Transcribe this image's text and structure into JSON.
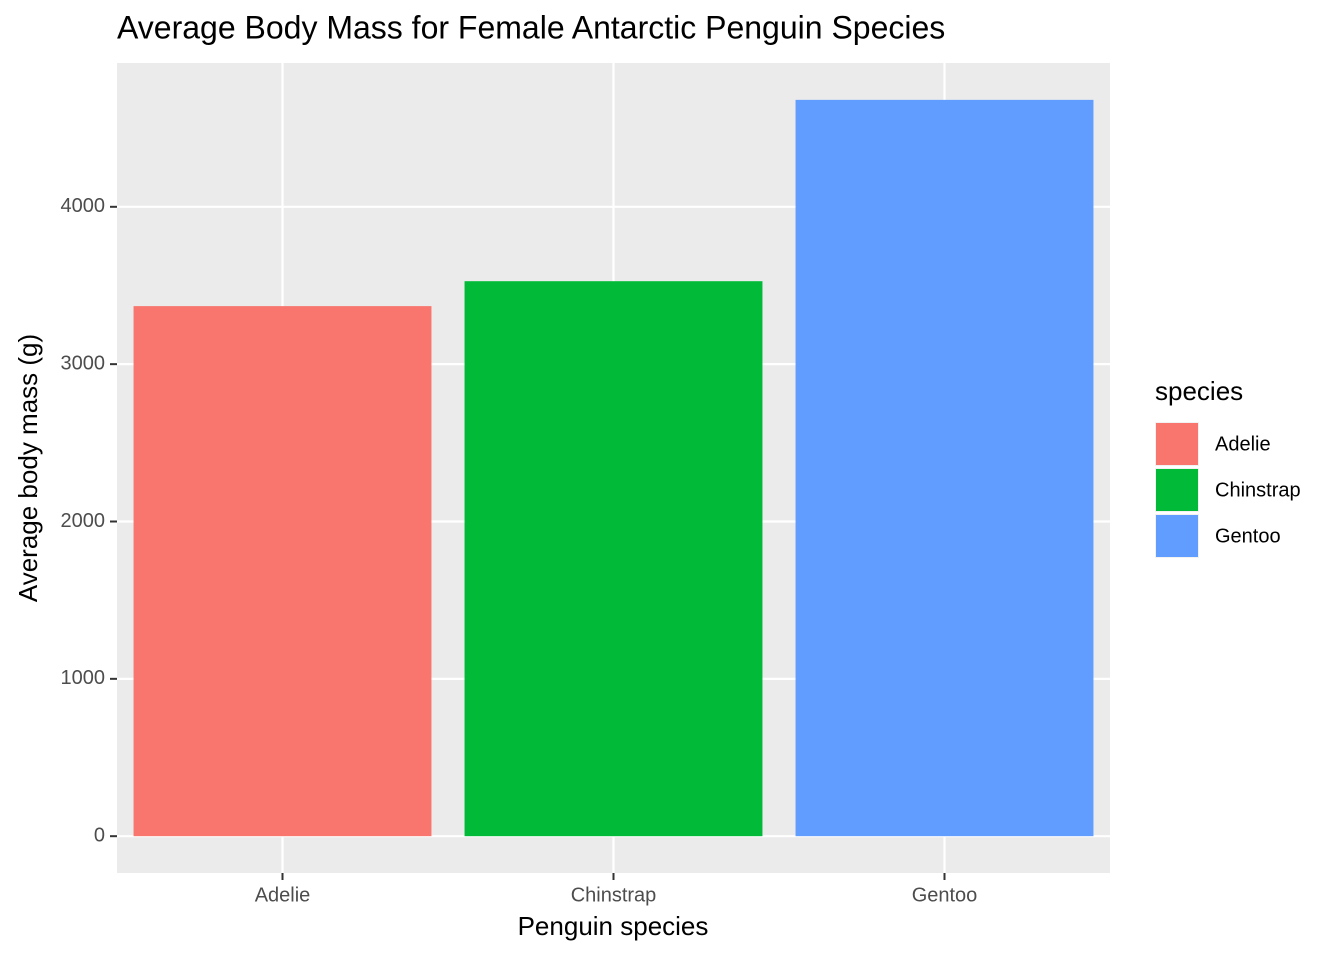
{
  "chart_data": {
    "type": "bar",
    "title": "Average Body Mass for Female Antarctic Penguin Species",
    "x_label": "Penguin species",
    "y_label": "Average body mass (g)",
    "categories": [
      "Adelie",
      "Chinstrap",
      "Gentoo"
    ],
    "values": [
      3368.8,
      3527.2,
      4679.7
    ],
    "colors": [
      "#f8766d",
      "#00ba38",
      "#619cff"
    ],
    "ylim": [
      -234,
      4914
    ],
    "yticks": [
      0,
      1000,
      2000,
      3000,
      4000
    ],
    "grid": true,
    "legend_title": "species",
    "legend_position": "right"
  }
}
